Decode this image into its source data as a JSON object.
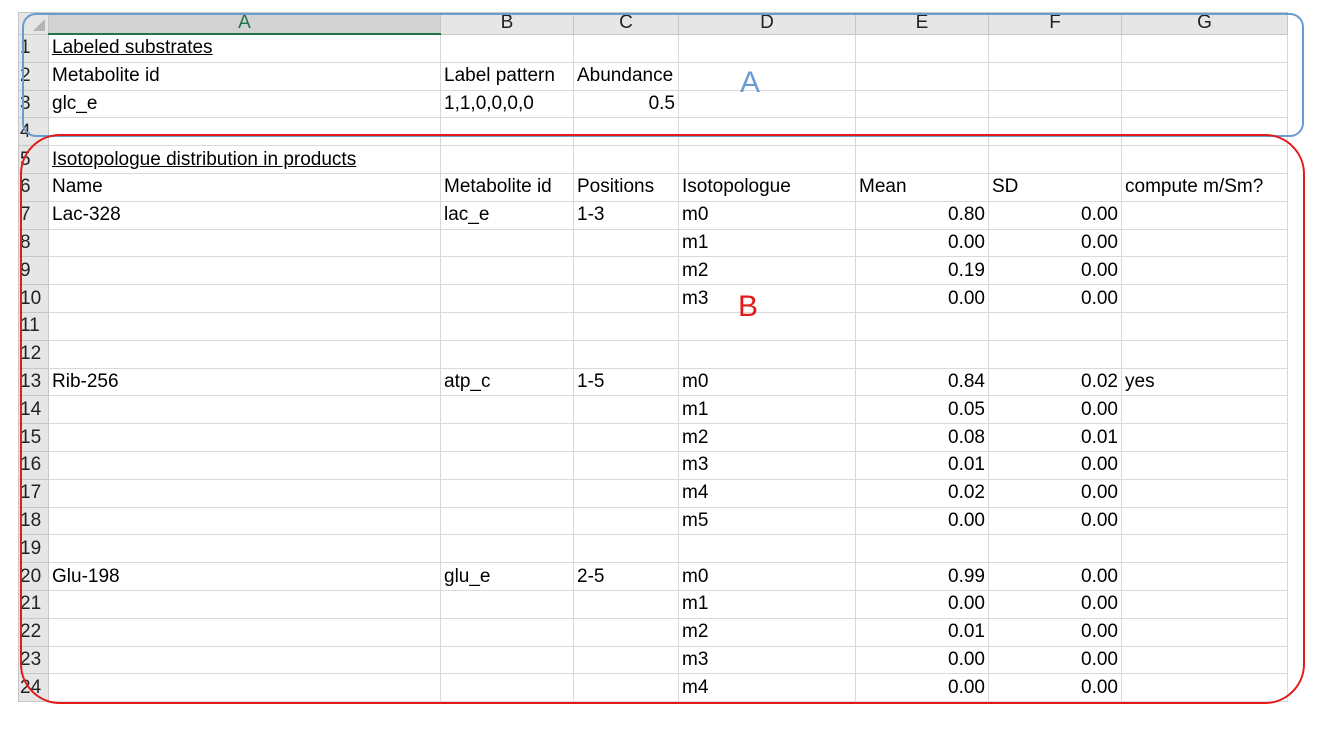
{
  "columns": [
    "A",
    "B",
    "C",
    "D",
    "E",
    "F",
    "G"
  ],
  "active_column": "A",
  "rows": [
    {
      "n": "1",
      "cells": [
        "Labeled  substrates",
        "",
        "",
        "",
        "",
        "",
        ""
      ]
    },
    {
      "n": "2",
      "cells": [
        "Metabolite id",
        "Label pattern",
        "Abundance",
        "",
        "",
        "",
        ""
      ]
    },
    {
      "n": "3",
      "cells": [
        "glc_e",
        "1,1,0,0,0,0",
        "0.5",
        "",
        "",
        "",
        ""
      ]
    },
    {
      "n": "4",
      "cells": [
        "",
        "",
        "",
        "",
        "",
        "",
        ""
      ]
    },
    {
      "n": "5",
      "cells": [
        "Isotopologue distribution in products",
        "",
        "",
        "",
        "",
        "",
        ""
      ]
    },
    {
      "n": "6",
      "cells": [
        "Name",
        "Metabolite id",
        "Positions",
        "Isotopologue",
        "Mean",
        "SD",
        "compute m/Sm?"
      ]
    },
    {
      "n": "7",
      "cells": [
        "Lac-328",
        "lac_e",
        "1-3",
        "m0",
        "0.80",
        "0.00",
        ""
      ]
    },
    {
      "n": "8",
      "cells": [
        "",
        "",
        "",
        "m1",
        "0.00",
        "0.00",
        ""
      ]
    },
    {
      "n": "9",
      "cells": [
        "",
        "",
        "",
        "m2",
        "0.19",
        "0.00",
        ""
      ]
    },
    {
      "n": "10",
      "cells": [
        "",
        "",
        "",
        "m3",
        "0.00",
        "0.00",
        ""
      ]
    },
    {
      "n": "11",
      "cells": [
        "",
        "",
        "",
        "",
        "",
        "",
        ""
      ]
    },
    {
      "n": "12",
      "cells": [
        "",
        "",
        "",
        "",
        "",
        "",
        ""
      ]
    },
    {
      "n": "13",
      "cells": [
        "Rib-256",
        "atp_c",
        "1-5",
        "m0",
        "0.84",
        "0.02",
        "yes"
      ]
    },
    {
      "n": "14",
      "cells": [
        "",
        "",
        "",
        "m1",
        "0.05",
        "0.00",
        ""
      ]
    },
    {
      "n": "15",
      "cells": [
        "",
        "",
        "",
        "m2",
        "0.08",
        "0.01",
        ""
      ]
    },
    {
      "n": "16",
      "cells": [
        "",
        "",
        "",
        "m3",
        "0.01",
        "0.00",
        ""
      ]
    },
    {
      "n": "17",
      "cells": [
        "",
        "",
        "",
        "m4",
        "0.02",
        "0.00",
        ""
      ]
    },
    {
      "n": "18",
      "cells": [
        "",
        "",
        "",
        "m5",
        "0.00",
        "0.00",
        ""
      ]
    },
    {
      "n": "19",
      "cells": [
        "",
        "",
        "",
        "",
        "",
        "",
        ""
      ]
    },
    {
      "n": "20",
      "cells": [
        "Glu-198",
        "glu_e",
        "2-5",
        "m0",
        "0.99",
        "0.00",
        ""
      ]
    },
    {
      "n": "21",
      "cells": [
        "",
        "",
        "",
        "m1",
        "0.00",
        "0.00",
        ""
      ]
    },
    {
      "n": "22",
      "cells": [
        "",
        "",
        "",
        "m2",
        "0.01",
        "0.00",
        ""
      ]
    },
    {
      "n": "23",
      "cells": [
        "",
        "",
        "",
        "m3",
        "0.00",
        "0.00",
        ""
      ]
    },
    {
      "n": "24",
      "cells": [
        "",
        "",
        "",
        "m4",
        "0.00",
        "0.00",
        ""
      ]
    }
  ],
  "annotations": {
    "a": {
      "label": "A",
      "color": "#6a9bd1"
    },
    "b": {
      "label": "B",
      "color": "#e21a1a"
    }
  },
  "colors": {
    "header_bg": "#e6e6e6",
    "gridline": "#d9d9d9",
    "accent": "#217346"
  }
}
